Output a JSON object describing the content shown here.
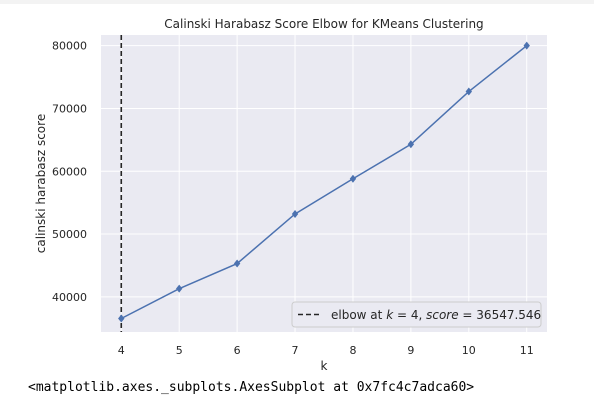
{
  "chart_data": {
    "type": "line",
    "title": "Calinski Harabasz Score Elbow for KMeans Clustering",
    "xlabel": "k",
    "ylabel": "calinski harabasz score",
    "x": [
      4,
      5,
      6,
      7,
      8,
      9,
      10,
      11
    ],
    "series": [
      {
        "values": [
          36547.546,
          41300,
          45300,
          53200,
          58800,
          64300,
          72700,
          80000
        ]
      }
    ],
    "xlim": [
      3.65,
      11.35
    ],
    "ylim": [
      34400,
      81700
    ],
    "xticks": [
      "4",
      "5",
      "6",
      "7",
      "8",
      "9",
      "10",
      "11"
    ],
    "yticks": [
      "40000",
      "50000",
      "60000",
      "70000",
      "80000"
    ],
    "grid": true,
    "elbow": {
      "k": 4,
      "score": 36547.546
    },
    "legend": {
      "placement": "lower-right",
      "label_prefix": "elbow at ",
      "k_var": "k",
      "eq1": " = 4, ",
      "score_var": "score",
      "eq2": " = 36547.546"
    },
    "colors": {
      "line": "#4c72b0",
      "background": "#eaeaf2",
      "grid": "#ffffff",
      "elbow": "#262626"
    }
  },
  "output_repr": "<matplotlib.axes._subplots.AxesSubplot at 0x7fc4c7adca60>"
}
